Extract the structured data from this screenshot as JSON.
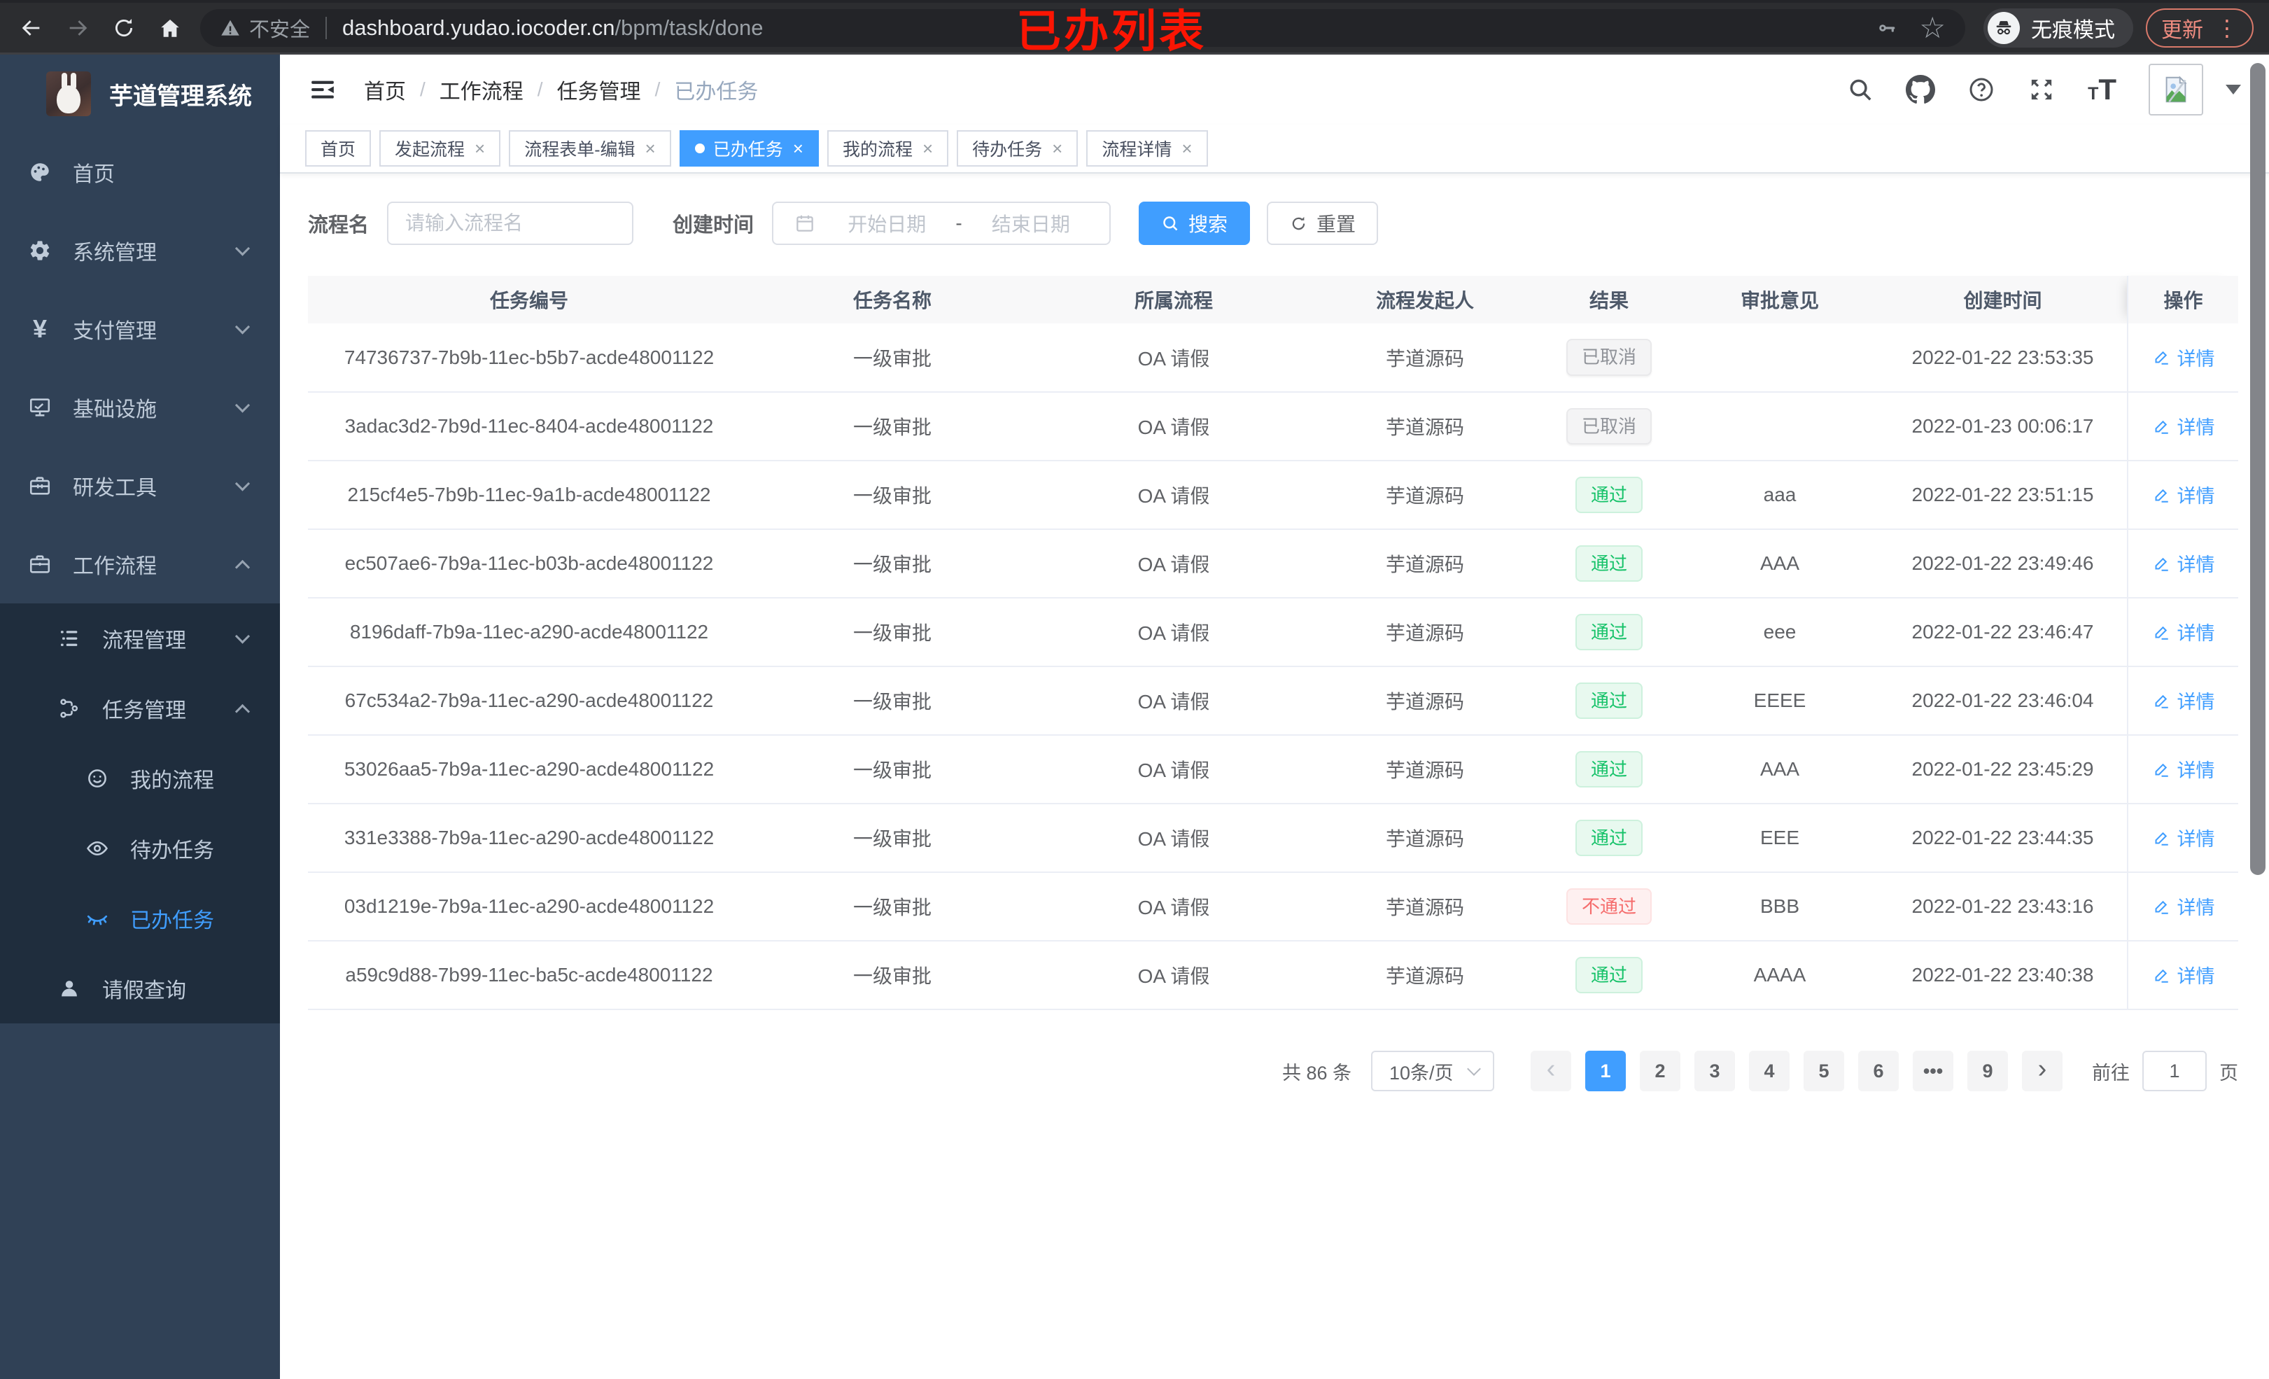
{
  "browser": {
    "security_label": "不安全",
    "url_host": "dashboard.yudao.iocoder.cn",
    "url_path": "/bpm/task/done",
    "incognito_label": "无痕模式",
    "update_label": "更新",
    "annotation": "已办列表"
  },
  "sidebar": {
    "title": "芋道管理系统",
    "items": [
      {
        "label": "首页",
        "icon": "dashboard-icon",
        "level": 1
      },
      {
        "label": "系统管理",
        "icon": "gear-icon",
        "level": 1,
        "chevron": "down"
      },
      {
        "label": "支付管理",
        "icon": "yen-icon",
        "level": 1,
        "chevron": "down"
      },
      {
        "label": "基础设施",
        "icon": "monitor-icon",
        "level": 1,
        "chevron": "down"
      },
      {
        "label": "研发工具",
        "icon": "toolbox-icon",
        "level": 1,
        "chevron": "down"
      },
      {
        "label": "工作流程",
        "icon": "briefcase-icon",
        "level": 1,
        "chevron": "up"
      },
      {
        "label": "流程管理",
        "icon": "tree-list-icon",
        "level": 2,
        "sub": true,
        "chevron": "down"
      },
      {
        "label": "任务管理",
        "icon": "org-icon",
        "level": 2,
        "sub": true,
        "chevron": "up"
      },
      {
        "label": "我的流程",
        "icon": "face-icon",
        "level": 3,
        "sub": true
      },
      {
        "label": "待办任务",
        "icon": "eye-open-icon",
        "level": 3,
        "sub": true
      },
      {
        "label": "已办任务",
        "icon": "eye-closed-icon",
        "level": 3,
        "sub": true,
        "active": true
      },
      {
        "label": "请假查询",
        "icon": "user-icon",
        "level": 2,
        "sub": true
      }
    ]
  },
  "header": {
    "breadcrumbs": [
      {
        "label": "首页"
      },
      {
        "label": "工作流程"
      },
      {
        "label": "任务管理"
      },
      {
        "label": "已办任务",
        "active": true
      }
    ]
  },
  "tabs": [
    {
      "label": "首页",
      "closable": false
    },
    {
      "label": "发起流程"
    },
    {
      "label": "流程表单-编辑"
    },
    {
      "label": "已办任务",
      "active": true
    },
    {
      "label": "我的流程"
    },
    {
      "label": "待办任务"
    },
    {
      "label": "流程详情"
    }
  ],
  "search": {
    "name_label": "流程名",
    "name_placeholder": "请输入流程名",
    "date_label": "创建时间",
    "date_start_placeholder": "开始日期",
    "date_separator": "-",
    "date_end_placeholder": "结束日期",
    "search_label": "搜索",
    "reset_label": "重置"
  },
  "table": {
    "columns": [
      "任务编号",
      "任务名称",
      "所属流程",
      "流程发起人",
      "结果",
      "审批意见",
      "创建时间",
      "操作"
    ],
    "action_label": "详情",
    "rows": [
      {
        "id": "74736737-7b9b-11ec-b5b7-acde48001122",
        "name": "一级审批",
        "process": "OA 请假",
        "starter": "芋道源码",
        "result": "已取消",
        "result_type": "info",
        "opinion": "",
        "created": "2022-01-22 23:53:35"
      },
      {
        "id": "3adac3d2-7b9d-11ec-8404-acde48001122",
        "name": "一级审批",
        "process": "OA 请假",
        "starter": "芋道源码",
        "result": "已取消",
        "result_type": "info",
        "opinion": "",
        "created": "2022-01-23 00:06:17"
      },
      {
        "id": "215cf4e5-7b9b-11ec-9a1b-acde48001122",
        "name": "一级审批",
        "process": "OA 请假",
        "starter": "芋道源码",
        "result": "通过",
        "result_type": "success",
        "opinion": "aaa",
        "created": "2022-01-22 23:51:15"
      },
      {
        "id": "ec507ae6-7b9a-11ec-b03b-acde48001122",
        "name": "一级审批",
        "process": "OA 请假",
        "starter": "芋道源码",
        "result": "通过",
        "result_type": "success",
        "opinion": "AAA",
        "created": "2022-01-22 23:49:46"
      },
      {
        "id": "8196daff-7b9a-11ec-a290-acde48001122",
        "name": "一级审批",
        "process": "OA 请假",
        "starter": "芋道源码",
        "result": "通过",
        "result_type": "success",
        "opinion": "eee",
        "created": "2022-01-22 23:46:47"
      },
      {
        "id": "67c534a2-7b9a-11ec-a290-acde48001122",
        "name": "一级审批",
        "process": "OA 请假",
        "starter": "芋道源码",
        "result": "通过",
        "result_type": "success",
        "opinion": "EEEE",
        "created": "2022-01-22 23:46:04"
      },
      {
        "id": "53026aa5-7b9a-11ec-a290-acde48001122",
        "name": "一级审批",
        "process": "OA 请假",
        "starter": "芋道源码",
        "result": "通过",
        "result_type": "success",
        "opinion": "AAA",
        "created": "2022-01-22 23:45:29"
      },
      {
        "id": "331e3388-7b9a-11ec-a290-acde48001122",
        "name": "一级审批",
        "process": "OA 请假",
        "starter": "芋道源码",
        "result": "通过",
        "result_type": "success",
        "opinion": "EEE",
        "created": "2022-01-22 23:44:35"
      },
      {
        "id": "03d1219e-7b9a-11ec-a290-acde48001122",
        "name": "一级审批",
        "process": "OA 请假",
        "starter": "芋道源码",
        "result": "不通过",
        "result_type": "danger",
        "opinion": "BBB",
        "created": "2022-01-22 23:43:16"
      },
      {
        "id": "a59c9d88-7b99-11ec-ba5c-acde48001122",
        "name": "一级审批",
        "process": "OA 请假",
        "starter": "芋道源码",
        "result": "通过",
        "result_type": "success",
        "opinion": "AAAA",
        "created": "2022-01-22 23:40:38"
      }
    ]
  },
  "pagination": {
    "total_label": "共 86 条",
    "page_size": "10条/页",
    "pages": [
      {
        "label": "1",
        "active": true
      },
      {
        "label": "2"
      },
      {
        "label": "3"
      },
      {
        "label": "4"
      },
      {
        "label": "5"
      },
      {
        "label": "6"
      },
      {
        "label": "•••",
        "ellipsis": true
      },
      {
        "label": "9"
      }
    ],
    "goto_label": "前往",
    "goto_value": "1",
    "page_unit": "页"
  },
  "colors": {
    "accent": "#409eff",
    "success": "#16c269",
    "danger": "#f56c6c",
    "info": "#909399",
    "sidebar_bg": "#304156",
    "submenu_bg": "#1f2d3d",
    "annotation": "#fb1503"
  }
}
